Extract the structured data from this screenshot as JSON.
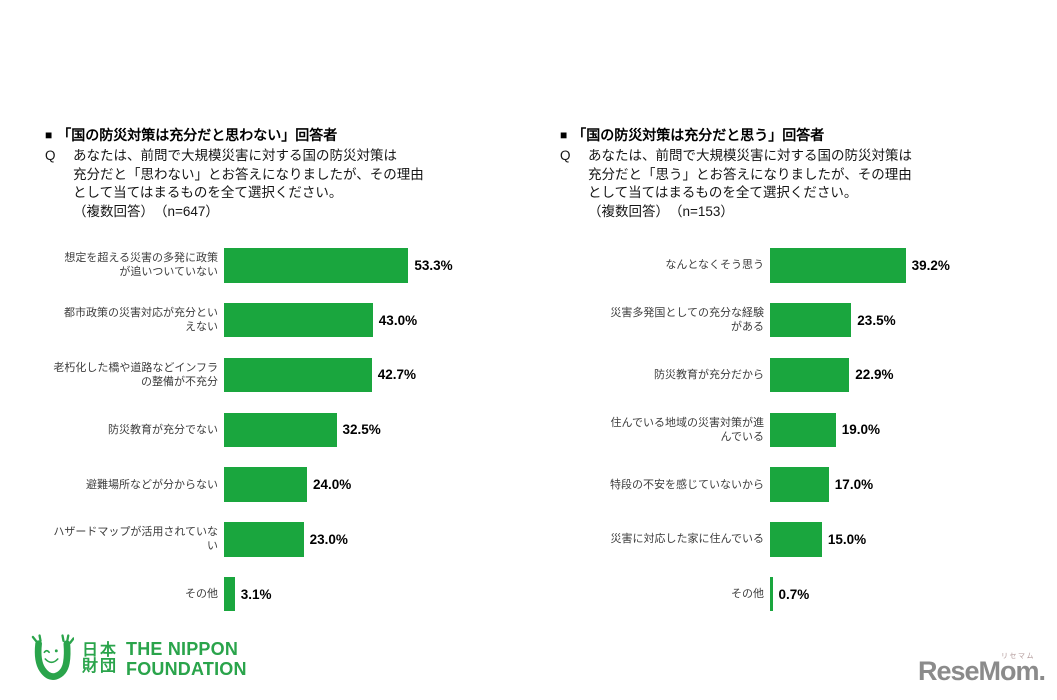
{
  "brand": {
    "bar_color": "#1aa63e",
    "nippon_green": "#2aa44b",
    "resemom_gray": "#8b8b8b"
  },
  "chart_data": [
    {
      "type": "bar",
      "orientation": "horizontal",
      "bullet": "■",
      "title": "「国の防災対策は充分だと思わない」回答者",
      "q_label": "Q",
      "question": "あなたは、前問で大規模災害に対する国の防災対策は\n充分だと「思わない」とお答えになりましたが、その理由\nとして当てはまるものを全て選択ください。\n（複数回答）　（n=647）",
      "n": 647,
      "categories": [
        "想定を超える災害の多発に政策\nが追いついていない",
        "都市政策の災害対応が充分とい\nえない",
        "老朽化した橋や道路などインフラ\nの整備が不充分",
        "防災教育が充分でない",
        "避難場所などが分からない",
        "ハザードマップが活用されていない",
        "その他"
      ],
      "values": [
        53.3,
        43.0,
        42.7,
        32.5,
        24.0,
        23.0,
        3.1
      ],
      "value_labels": [
        "53.3%",
        "43.0%",
        "42.7%",
        "32.5%",
        "24.0%",
        "23.0%",
        "3.1%"
      ],
      "xlim": [
        0,
        60
      ],
      "grid": false,
      "legend": "none",
      "bar_color": "#1aa63e"
    },
    {
      "type": "bar",
      "orientation": "horizontal",
      "bullet": "■",
      "title": "「国の防災対策は充分だと思う」回答者",
      "q_label": "Q",
      "question": "あなたは、前問で大規模災害に対する国の防災対策は\n充分だと「思う」とお答えになりましたが、その理由\nとして当てはまるものを全て選択ください。\n（複数回答）　（n=153）",
      "n": 153,
      "categories": [
        "なんとなくそう思う",
        "災害多発国としての充分な経験\nがある",
        "防災教育が充分だから",
        "住んでいる地域の災害対策が進\nんでいる",
        "特段の不安を感じていないから",
        "災害に対応した家に住んでいる",
        "その他"
      ],
      "values": [
        39.2,
        23.5,
        22.9,
        19.0,
        17.0,
        15.0,
        0.7
      ],
      "value_labels": [
        "39.2%",
        "23.5%",
        "22.9%",
        "19.0%",
        "17.0%",
        "15.0%",
        "0.7%"
      ],
      "xlim": [
        0,
        60
      ],
      "grid": false,
      "legend": "none",
      "bar_color": "#1aa63e"
    }
  ],
  "footer": {
    "nippon_foundation": {
      "kanji_line1": "日本",
      "kanji_line2": "財団",
      "en_line1": "THE NIPPON",
      "en_line2": "FOUNDATION"
    },
    "resemom": {
      "text": "ReseMom.",
      "ruby": "リセマム"
    }
  }
}
